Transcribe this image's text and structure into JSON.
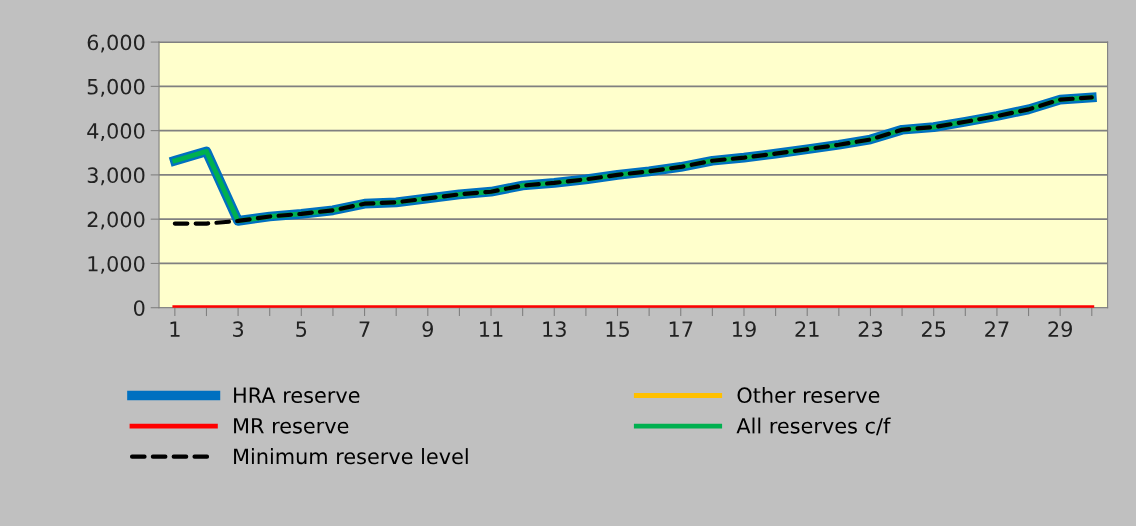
{
  "chart_data": {
    "type": "line",
    "categories": [
      "1",
      null,
      "3",
      null,
      "5",
      null,
      "7",
      null,
      "9",
      null,
      "11",
      null,
      "13",
      null,
      "15",
      null,
      "17",
      null,
      "19",
      null,
      "21",
      null,
      "23",
      null,
      "25",
      null,
      "27",
      null,
      "29",
      null
    ],
    "series": [
      {
        "name": "HRA reserve",
        "color": "#0070c0",
        "values": [
          3320,
          3530,
          1960,
          2060,
          2120,
          2200,
          2350,
          2380,
          2470,
          2560,
          2620,
          2760,
          2820,
          2900,
          3000,
          3080,
          3180,
          3320,
          3390,
          3480,
          3580,
          3680,
          3800,
          4020,
          4080,
          4200,
          4330,
          4480,
          4700,
          4750
        ]
      },
      {
        "name": "Other reserve",
        "color": "#ffc000",
        "values": [
          null,
          null,
          null,
          null,
          null,
          null,
          null,
          null,
          null,
          null,
          null,
          null,
          null,
          null,
          null,
          null,
          null,
          null,
          null,
          null,
          null,
          null,
          null,
          null,
          null,
          null,
          null,
          null,
          null,
          null
        ]
      },
      {
        "name": "MR reserve",
        "color": "#ff0000",
        "values": [
          0,
          0,
          0,
          0,
          0,
          0,
          0,
          0,
          0,
          0,
          0,
          0,
          0,
          0,
          0,
          0,
          0,
          0,
          0,
          0,
          0,
          0,
          0,
          0,
          0,
          0,
          0,
          0,
          0,
          0
        ]
      },
      {
        "name": "All reserves c/f",
        "color": "#00b050",
        "values": [
          3320,
          3530,
          1960,
          2060,
          2120,
          2200,
          2350,
          2380,
          2470,
          2560,
          2620,
          2760,
          2820,
          2900,
          3000,
          3080,
          3180,
          3320,
          3390,
          3480,
          3580,
          3680,
          3800,
          4020,
          4080,
          4200,
          4330,
          4480,
          4700,
          4750
        ]
      },
      {
        "name": "Minimum reserve level",
        "color": "#000000",
        "line_style": "dashed",
        "values": [
          1900,
          1900,
          1960,
          2060,
          2120,
          2200,
          2350,
          2380,
          2470,
          2560,
          2620,
          2760,
          2820,
          2900,
          3000,
          3080,
          3180,
          3320,
          3390,
          3480,
          3580,
          3680,
          3800,
          4020,
          4080,
          4200,
          4330,
          4480,
          4700,
          4750
        ]
      }
    ],
    "ylim": [
      0,
      6000
    ],
    "yticks": [
      {
        "value": 0,
        "label": "0"
      },
      {
        "value": 1000,
        "label": "1,000"
      },
      {
        "value": 2000,
        "label": "2,000"
      },
      {
        "value": 3000,
        "label": "3,000"
      },
      {
        "value": 4000,
        "label": "4,000"
      },
      {
        "value": 5000,
        "label": "5,000"
      },
      {
        "value": 6000,
        "label": "6,000"
      }
    ],
    "grid": "y",
    "legend": "bottom",
    "marker": "none"
  }
}
